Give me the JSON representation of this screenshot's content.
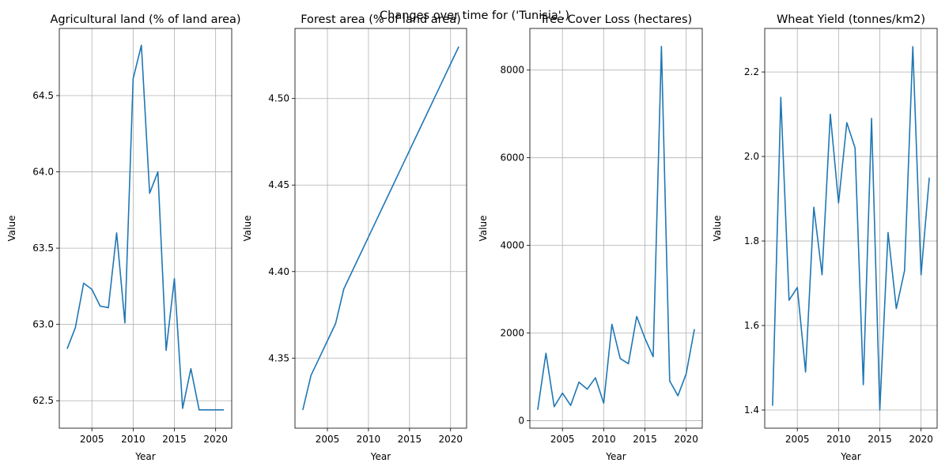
{
  "figure": {
    "suptitle": "Changes over time for ('Tunisia',)"
  },
  "chart_data": [
    {
      "type": "line",
      "title": "Agricultural land (% of land area)",
      "xlabel": "Year",
      "ylabel": "Value",
      "grid": true,
      "color": "#1f77b4",
      "xlim": [
        2001.05,
        2021.95
      ],
      "ylim": [
        62.32,
        64.94
      ],
      "xticks": [
        2005,
        2010,
        2015,
        2020
      ],
      "yticks": [
        62.5,
        63.0,
        63.5,
        64.0,
        64.5
      ],
      "ytick_labels": [
        "62.5",
        "63.0",
        "63.5",
        "64.0",
        "64.5"
      ],
      "x": [
        2002,
        2003,
        2004,
        2005,
        2006,
        2007,
        2008,
        2009,
        2010,
        2011,
        2012,
        2013,
        2014,
        2015,
        2016,
        2017,
        2018,
        2019,
        2020,
        2021
      ],
      "y": [
        62.84,
        62.98,
        63.27,
        63.23,
        63.12,
        63.11,
        63.6,
        63.01,
        64.61,
        64.83,
        63.86,
        64.0,
        62.83,
        63.3,
        62.45,
        62.71,
        62.44,
        62.44,
        62.44,
        62.44
      ]
    },
    {
      "type": "line",
      "title": "Forest area (% of land area)",
      "xlabel": "Year",
      "ylabel": "Value",
      "grid": true,
      "color": "#1f77b4",
      "xlim": [
        2001.05,
        2021.95
      ],
      "ylim": [
        4.3095,
        4.5405
      ],
      "xticks": [
        2005,
        2010,
        2015,
        2020
      ],
      "yticks": [
        4.35,
        4.4,
        4.45,
        4.5
      ],
      "ytick_labels": [
        "4.35",
        "4.40",
        "4.45",
        "4.50"
      ],
      "x": [
        2002,
        2003,
        2004,
        2005,
        2006,
        2007,
        2008,
        2009,
        2010,
        2011,
        2012,
        2013,
        2014,
        2015,
        2016,
        2017,
        2018,
        2019,
        2020,
        2021
      ],
      "y": [
        4.32,
        4.34,
        4.35,
        4.36,
        4.37,
        4.39,
        4.4,
        4.41,
        4.42,
        4.43,
        4.44,
        4.45,
        4.46,
        4.47,
        4.48,
        4.49,
        4.5,
        4.51,
        4.52,
        4.53
      ]
    },
    {
      "type": "line",
      "title": "Tree Cover Loss (hectares)",
      "xlabel": "Year",
      "ylabel": "Value",
      "grid": true,
      "color": "#1f77b4",
      "xlim": [
        2001.05,
        2021.95
      ],
      "ylim": [
        -170,
        8950
      ],
      "xticks": [
        2005,
        2010,
        2015,
        2020
      ],
      "yticks": [
        0,
        2000,
        4000,
        6000,
        8000
      ],
      "ytick_labels": [
        "0",
        "2000",
        "4000",
        "6000",
        "8000"
      ],
      "x": [
        2002,
        2003,
        2004,
        2005,
        2006,
        2007,
        2008,
        2009,
        2010,
        2011,
        2012,
        2013,
        2014,
        2015,
        2016,
        2017,
        2018,
        2019,
        2020,
        2021
      ],
      "y": [
        250,
        1540,
        320,
        630,
        350,
        880,
        720,
        980,
        400,
        2200,
        1420,
        1300,
        2380,
        1880,
        1460,
        8540,
        910,
        570,
        1070,
        2090
      ]
    },
    {
      "type": "line",
      "title": "Wheat Yield (tonnes/km2)",
      "xlabel": "Year",
      "ylabel": "Value",
      "grid": true,
      "color": "#1f77b4",
      "xlim": [
        2001.05,
        2021.95
      ],
      "ylim": [
        1.357,
        2.303
      ],
      "xticks": [
        2005,
        2010,
        2015,
        2020
      ],
      "yticks": [
        1.4,
        1.6,
        1.8,
        2.0,
        2.2
      ],
      "ytick_labels": [
        "1.4",
        "1.6",
        "1.8",
        "2.0",
        "2.2"
      ],
      "x": [
        2002,
        2003,
        2004,
        2005,
        2006,
        2007,
        2008,
        2009,
        2010,
        2011,
        2012,
        2013,
        2014,
        2015,
        2016,
        2017,
        2018,
        2019,
        2020,
        2021
      ],
      "y": [
        1.41,
        2.14,
        1.66,
        1.69,
        1.49,
        1.88,
        1.72,
        2.1,
        1.89,
        2.08,
        2.02,
        1.46,
        2.09,
        1.4,
        1.82,
        1.64,
        1.73,
        2.26,
        1.72,
        1.95
      ]
    }
  ]
}
